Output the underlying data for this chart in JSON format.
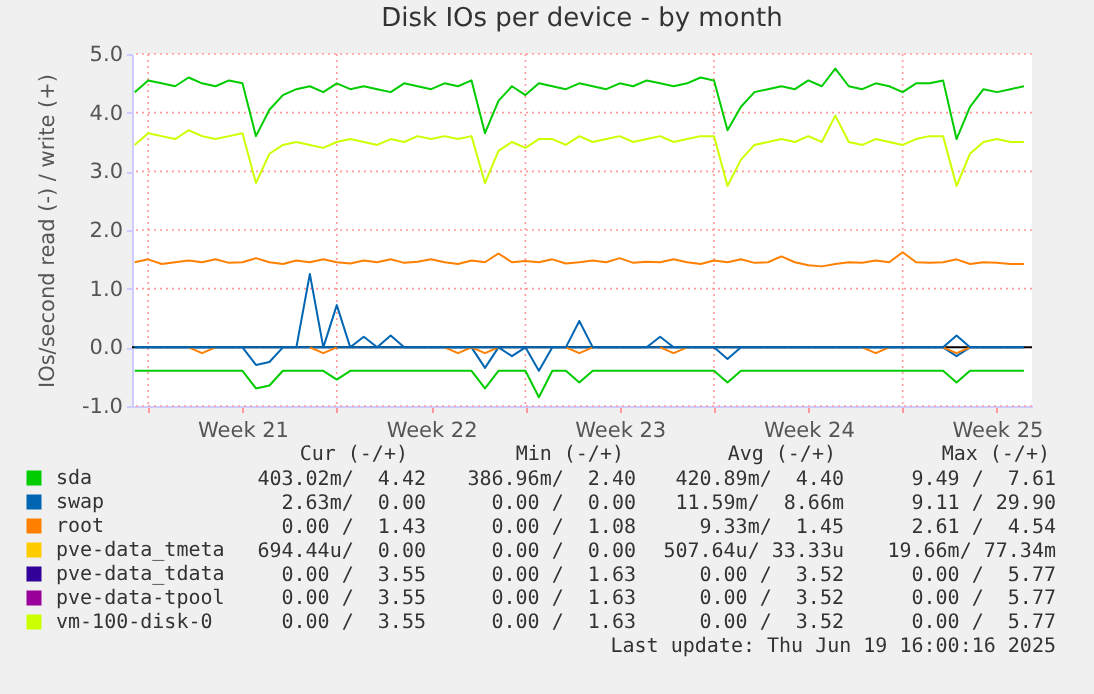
{
  "chart_data": {
    "type": "line",
    "title": "Disk IOs per device - by month",
    "ylabel": "IOs/second read (-) / write (+)",
    "x": [
      "2025-05-18T12:00",
      "2025-05-19T00:00",
      "2025-05-19T12:00",
      "2025-05-20T00:00",
      "2025-05-20T12:00",
      "2025-05-21T00:00",
      "2025-05-21T12:00",
      "2025-05-22T00:00",
      "2025-05-22T12:00",
      "2025-05-23T00:00",
      "2025-05-23T12:00",
      "2025-05-24T00:00",
      "2025-05-24T12:00",
      "2025-05-25T00:00",
      "2025-05-25T12:00",
      "2025-05-26T00:00",
      "2025-05-26T12:00",
      "2025-05-27T00:00",
      "2025-05-27T12:00",
      "2025-05-28T00:00",
      "2025-05-28T12:00",
      "2025-05-29T00:00",
      "2025-05-29T12:00",
      "2025-05-30T00:00",
      "2025-05-30T12:00",
      "2025-05-31T00:00",
      "2025-05-31T12:00",
      "2025-06-01T00:00",
      "2025-06-01T12:00",
      "2025-06-02T00:00",
      "2025-06-02T12:00",
      "2025-06-03T00:00",
      "2025-06-03T12:00",
      "2025-06-04T00:00",
      "2025-06-04T12:00",
      "2025-06-05T00:00",
      "2025-06-05T12:00",
      "2025-06-06T00:00",
      "2025-06-06T12:00",
      "2025-06-07T00:00",
      "2025-06-07T12:00",
      "2025-06-08T00:00",
      "2025-06-08T12:00",
      "2025-06-09T00:00",
      "2025-06-09T12:00",
      "2025-06-10T00:00",
      "2025-06-10T12:00",
      "2025-06-11T00:00",
      "2025-06-11T12:00",
      "2025-06-12T00:00",
      "2025-06-12T12:00",
      "2025-06-13T00:00",
      "2025-06-13T12:00",
      "2025-06-14T00:00",
      "2025-06-14T12:00",
      "2025-06-15T00:00",
      "2025-06-15T12:00",
      "2025-06-16T00:00",
      "2025-06-16T12:00",
      "2025-06-17T00:00",
      "2025-06-17T12:00",
      "2025-06-18T00:00",
      "2025-06-18T12:00",
      "2025-06-19T00:00",
      "2025-06-19T12:00",
      "2025-06-20T00:00",
      "2025-06-20T12:00"
    ],
    "xlim": [
      "2025-05-18T09:36",
      "2025-06-20T19:12"
    ],
    "xticks": [
      {
        "value": "2025-05-19T00:00",
        "label": null
      },
      {
        "value": "2025-05-22T12:00",
        "label": "Week 21"
      },
      {
        "value": "2025-05-26T00:00",
        "label": null
      },
      {
        "value": "2025-05-29T12:00",
        "label": "Week 22"
      },
      {
        "value": "2025-06-02T00:00",
        "label": null
      },
      {
        "value": "2025-06-05T12:00",
        "label": "Week 23"
      },
      {
        "value": "2025-06-09T00:00",
        "label": null
      },
      {
        "value": "2025-06-12T12:00",
        "label": "Week 24"
      },
      {
        "value": "2025-06-16T00:00",
        "label": null
      },
      {
        "value": "2025-06-19T12:00",
        "label": "Week 25"
      }
    ],
    "ylim": [
      -1,
      5
    ],
    "yticks": [
      {
        "value": -1,
        "label": "-1.0"
      },
      {
        "value": 0,
        "label": "0.0"
      },
      {
        "value": 1,
        "label": "1.0"
      },
      {
        "value": 2,
        "label": "2.0"
      },
      {
        "value": 3,
        "label": "3.0"
      },
      {
        "value": 4,
        "label": "4.0"
      },
      {
        "value": 5,
        "label": "5.0"
      }
    ],
    "grid": true,
    "legend": "bottom",
    "ref_lines": [
      {
        "axis": "y",
        "value": 0,
        "color": "#000000"
      }
    ],
    "series": [
      {
        "name": "sda",
        "color": "#00cc00",
        "values": [
          4.35,
          4.55,
          4.5,
          4.45,
          4.6,
          4.5,
          4.45,
          4.55,
          4.5,
          3.6,
          4.05,
          4.3,
          4.4,
          4.45,
          4.35,
          4.5,
          4.4,
          4.45,
          4.4,
          4.35,
          4.5,
          4.45,
          4.4,
          4.5,
          4.45,
          4.55,
          3.65,
          4.2,
          4.45,
          4.3,
          4.5,
          4.45,
          4.4,
          4.5,
          4.45,
          4.4,
          4.5,
          4.45,
          4.55,
          4.5,
          4.45,
          4.5,
          4.6,
          4.55,
          3.7,
          4.1,
          4.35,
          4.4,
          4.45,
          4.4,
          4.55,
          4.45,
          4.75,
          4.45,
          4.4,
          4.5,
          4.45,
          4.35,
          4.5,
          4.5,
          4.55,
          3.55,
          4.1,
          4.4,
          4.35,
          4.4,
          4.45
        ]
      },
      {
        "name": "swap",
        "color": "#0066b3",
        "values": [
          0,
          0,
          0,
          0,
          0,
          0,
          0,
          0,
          0,
          0,
          0,
          0,
          0,
          1.25,
          0,
          0.72,
          0,
          0.18,
          0,
          0.2,
          0,
          0,
          0,
          0,
          0,
          0,
          0,
          0,
          0,
          0,
          0,
          0,
          0,
          0.45,
          0,
          0,
          0,
          0,
          0,
          0.18,
          0,
          0,
          0,
          0,
          0,
          0,
          0,
          0,
          0,
          0,
          0,
          0,
          0,
          0,
          0,
          0,
          0,
          0,
          0,
          0,
          0,
          0.2,
          0,
          0,
          0,
          0,
          0
        ]
      },
      {
        "name": "root",
        "color": "#ff8000",
        "values": [
          1.45,
          1.5,
          1.42,
          1.45,
          1.48,
          1.45,
          1.5,
          1.44,
          1.45,
          1.52,
          1.45,
          1.42,
          1.48,
          1.45,
          1.5,
          1.45,
          1.43,
          1.48,
          1.45,
          1.5,
          1.44,
          1.46,
          1.5,
          1.45,
          1.42,
          1.48,
          1.45,
          1.6,
          1.45,
          1.47,
          1.45,
          1.5,
          1.43,
          1.45,
          1.48,
          1.45,
          1.52,
          1.44,
          1.46,
          1.45,
          1.5,
          1.45,
          1.42,
          1.48,
          1.45,
          1.5,
          1.44,
          1.45,
          1.55,
          1.45,
          1.4,
          1.38,
          1.42,
          1.45,
          1.44,
          1.48,
          1.45,
          1.62,
          1.45,
          1.44,
          1.45,
          1.5,
          1.42,
          1.45,
          1.44,
          1.42,
          1.42
        ]
      },
      {
        "name": "pve-data_tmeta",
        "color": "#ffcc00",
        "values": [
          null,
          null,
          null,
          null,
          null,
          null,
          null,
          null,
          null,
          null,
          null,
          null,
          null,
          null,
          null,
          null,
          null,
          null,
          null,
          null,
          null,
          null,
          null,
          null,
          null,
          null,
          null,
          null,
          null,
          null,
          null,
          null,
          null,
          null,
          null,
          null,
          null,
          null,
          null,
          null,
          null,
          null,
          null,
          null,
          null,
          null,
          null,
          null,
          null,
          null,
          null,
          null,
          null,
          null,
          null,
          null,
          null,
          null,
          null,
          null,
          null,
          null,
          null,
          null,
          null,
          null,
          null
        ]
      },
      {
        "name": "pve-data_tdata",
        "color": "#330099",
        "values": [
          null,
          null,
          null,
          null,
          null,
          null,
          null,
          null,
          null,
          null,
          null,
          null,
          null,
          null,
          null,
          null,
          null,
          null,
          null,
          null,
          null,
          null,
          null,
          null,
          null,
          null,
          null,
          null,
          null,
          null,
          null,
          null,
          null,
          null,
          null,
          null,
          null,
          null,
          null,
          null,
          null,
          null,
          null,
          null,
          null,
          null,
          null,
          null,
          null,
          null,
          null,
          null,
          null,
          null,
          null,
          null,
          null,
          null,
          null,
          null,
          null,
          null,
          null,
          null,
          null,
          null,
          null
        ]
      },
      {
        "name": "pve-data-tpool",
        "color": "#990099",
        "values": [
          null,
          null,
          null,
          null,
          null,
          null,
          null,
          null,
          null,
          null,
          null,
          null,
          null,
          null,
          null,
          null,
          null,
          null,
          null,
          null,
          null,
          null,
          null,
          null,
          null,
          null,
          null,
          null,
          null,
          null,
          null,
          null,
          null,
          null,
          null,
          null,
          null,
          null,
          null,
          null,
          null,
          null,
          null,
          null,
          null,
          null,
          null,
          null,
          null,
          null,
          null,
          null,
          null,
          null,
          null,
          null,
          null,
          null,
          null,
          null,
          null,
          null,
          null,
          null,
          null,
          null,
          null
        ]
      },
      {
        "name": "vm-100-disk-0",
        "color": "#ccff00",
        "values": [
          3.45,
          3.65,
          3.6,
          3.55,
          3.7,
          3.6,
          3.55,
          3.6,
          3.65,
          2.8,
          3.3,
          3.45,
          3.5,
          3.45,
          3.4,
          3.5,
          3.55,
          3.5,
          3.45,
          3.55,
          3.5,
          3.6,
          3.55,
          3.6,
          3.55,
          3.6,
          2.8,
          3.35,
          3.5,
          3.4,
          3.55,
          3.55,
          3.45,
          3.6,
          3.5,
          3.55,
          3.6,
          3.5,
          3.55,
          3.6,
          3.5,
          3.55,
          3.6,
          3.6,
          2.75,
          3.2,
          3.45,
          3.5,
          3.55,
          3.5,
          3.6,
          3.5,
          3.95,
          3.5,
          3.45,
          3.55,
          3.5,
          3.45,
          3.55,
          3.6,
          3.6,
          2.75,
          3.3,
          3.5,
          3.55,
          3.5,
          3.5
        ]
      },
      {
        "color": "#00cc00",
        "values": [
          -0.4,
          -0.4,
          -0.4,
          -0.4,
          -0.4,
          -0.4,
          -0.4,
          -0.4,
          -0.4,
          -0.7,
          -0.65,
          -0.4,
          -0.4,
          -0.4,
          -0.4,
          -0.55,
          -0.4,
          -0.4,
          -0.4,
          -0.4,
          -0.4,
          -0.4,
          -0.4,
          -0.4,
          -0.4,
          -0.4,
          -0.7,
          -0.4,
          -0.4,
          -0.4,
          -0.85,
          -0.4,
          -0.4,
          -0.6,
          -0.4,
          -0.4,
          -0.4,
          -0.4,
          -0.4,
          -0.4,
          -0.4,
          -0.4,
          -0.4,
          -0.4,
          -0.6,
          -0.4,
          -0.4,
          -0.4,
          -0.4,
          -0.4,
          -0.4,
          -0.4,
          -0.4,
          -0.4,
          -0.4,
          -0.4,
          -0.4,
          -0.4,
          -0.4,
          -0.4,
          -0.4,
          -0.6,
          -0.4,
          -0.4,
          -0.4,
          -0.4,
          -0.4
        ]
      },
      {
        "color": "#0066b3",
        "values": [
          0,
          0,
          0,
          0,
          0,
          0,
          0,
          0,
          0,
          -0.3,
          -0.25,
          0,
          0,
          0,
          0,
          0,
          0,
          0,
          0,
          0,
          0,
          0,
          0,
          0,
          0,
          0,
          -0.35,
          0,
          -0.15,
          0,
          -0.4,
          0,
          0,
          0,
          0,
          0,
          0,
          0,
          0,
          0,
          0,
          0,
          0,
          0,
          -0.2,
          0,
          0,
          0,
          0,
          0,
          0,
          0,
          0,
          0,
          0,
          0,
          0,
          0,
          0,
          0,
          0,
          -0.15,
          0,
          0,
          0,
          0,
          0
        ]
      },
      {
        "color": "#ff8000",
        "values": [
          null,
          null,
          null,
          null,
          0,
          -0.1,
          0,
          null,
          null,
          null,
          null,
          null,
          null,
          0,
          -0.1,
          0,
          null,
          null,
          null,
          null,
          null,
          null,
          null,
          0,
          -0.1,
          0,
          -0.1,
          0,
          null,
          null,
          null,
          null,
          0,
          -0.1,
          0,
          null,
          null,
          null,
          null,
          0,
          -0.1,
          0,
          null,
          null,
          null,
          null,
          null,
          null,
          null,
          null,
          null,
          null,
          null,
          null,
          0,
          -0.1,
          0,
          null,
          null,
          null,
          0,
          -0.1,
          0,
          null,
          null,
          null,
          null
        ]
      }
    ],
    "annotations": [
      "Cur (-/+)",
      "Min (-/+)",
      "Avg (-/+)",
      "Max (-/+)",
      "403.02m/  4.42",
      "386.96m/  2.40",
      "420.89m/  4.40",
      "9.49 /  7.61",
      "2.63m/  0.00",
      "0.00 /  0.00",
      "11.59m/  8.66m",
      "9.11 / 29.90",
      "0.00 /  1.43",
      "0.00 /  1.08",
      "9.33m/  1.45",
      "2.61 /  4.54",
      "694.44u/  0.00",
      "0.00 /  0.00",
      "507.64u/ 33.33u",
      "19.66m/ 77.34m",
      "0.00 /  3.55",
      "0.00 /  1.63",
      "0.00 /  3.52",
      "0.00 /  5.77",
      "0.00 /  3.55",
      "0.00 /  1.63",
      "0.00 /  3.52",
      "0.00 /  5.77",
      "0.00 /  3.55",
      "0.00 /  1.63",
      "0.00 /  3.52",
      "0.00 /  5.77",
      "Last update: Thu Jun 19 16:00:16 2025"
    ]
  }
}
